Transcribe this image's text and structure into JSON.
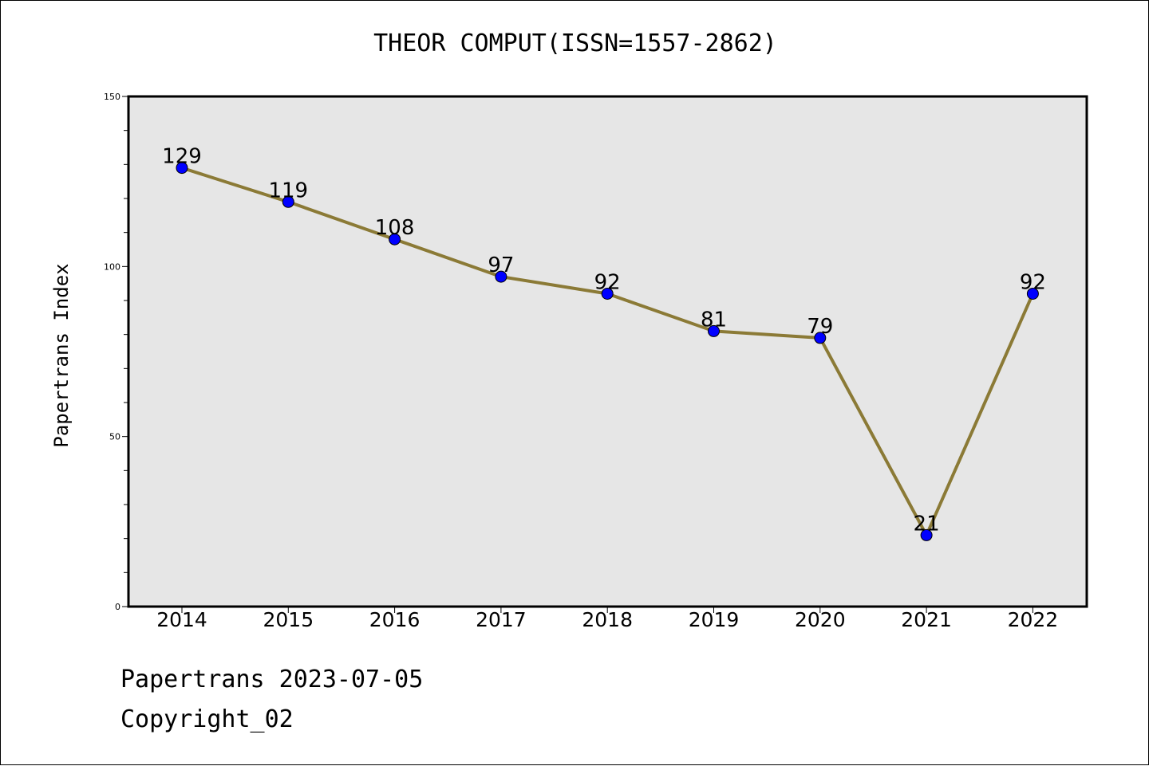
{
  "chart_data": {
    "type": "line",
    "title": "THEOR COMPUT(ISSN=1557-2862)",
    "ylabel": "Papertrans Index",
    "xlabel": "",
    "categories": [
      "2014",
      "2015",
      "2016",
      "2017",
      "2018",
      "2019",
      "2020",
      "2021",
      "2022"
    ],
    "series": [
      {
        "values": [
          129,
          119,
          108,
          97,
          92,
          81,
          79,
          21,
          92
        ]
      }
    ],
    "ylim": [
      0,
      150
    ],
    "y_ticks": [
      0,
      50,
      100,
      150
    ],
    "grid": false,
    "colors": {
      "line": "#8b7a36",
      "marker": "#0000ff",
      "plot_bg": "#e6e6e6"
    }
  },
  "footer": {
    "date": "Papertrans 2023-07-05",
    "copyright": "Copyright_02"
  }
}
